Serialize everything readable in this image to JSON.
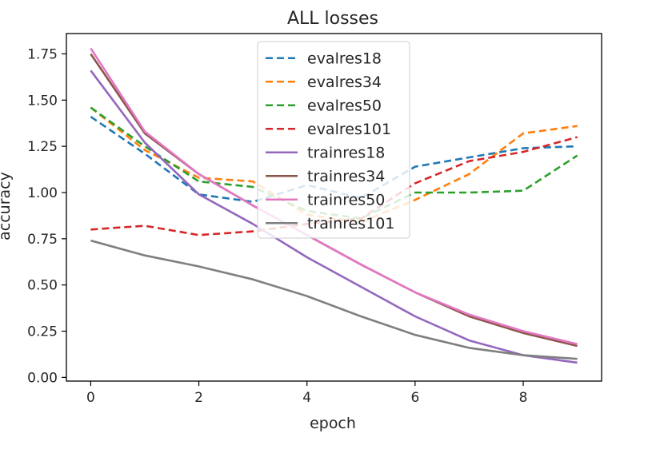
{
  "chart_data": {
    "type": "line",
    "title": "ALL  losses",
    "xlabel": "epoch",
    "ylabel": "accuracy",
    "xlim": [
      -0.45,
      9.45
    ],
    "ylim": [
      -0.02,
      1.86
    ],
    "x_ticks": [
      0,
      2,
      4,
      6,
      8
    ],
    "y_ticks": [
      0.0,
      0.25,
      0.5,
      0.75,
      1.0,
      1.25,
      1.5,
      1.75
    ],
    "x_tick_labels": [
      "0",
      "2",
      "4",
      "6",
      "8"
    ],
    "y_tick_labels": [
      "0.00",
      "0.25",
      "0.50",
      "0.75",
      "1.00",
      "1.25",
      "1.50",
      "1.75"
    ],
    "x": [
      0,
      1,
      2,
      3,
      4,
      5,
      6,
      7,
      8,
      9
    ],
    "grid": false,
    "legend_position": "top-center",
    "series": [
      {
        "name": "evalres18",
        "style": "dashed",
        "color": "#1f77b4",
        "values": [
          1.41,
          1.21,
          0.99,
          0.95,
          1.04,
          0.97,
          1.14,
          1.19,
          1.24,
          1.25
        ]
      },
      {
        "name": "evalres34",
        "style": "dashed",
        "color": "#ff7f0e",
        "values": [
          1.46,
          1.23,
          1.08,
          1.06,
          0.88,
          0.84,
          0.96,
          1.1,
          1.32,
          1.36
        ]
      },
      {
        "name": "evalres50",
        "style": "dashed",
        "color": "#2ca02c",
        "values": [
          1.46,
          1.25,
          1.06,
          1.03,
          0.9,
          0.86,
          1.0,
          1.0,
          1.01,
          1.2
        ]
      },
      {
        "name": "evalres101",
        "style": "dashed",
        "color": "#d62728",
        "values": [
          0.8,
          0.82,
          0.77,
          0.79,
          0.83,
          0.86,
          1.05,
          1.17,
          1.22,
          1.3
        ]
      },
      {
        "name": "trainres18",
        "style": "solid",
        "color": "#9467bd",
        "values": [
          1.66,
          1.27,
          0.99,
          0.83,
          0.65,
          0.49,
          0.33,
          0.2,
          0.12,
          0.08
        ]
      },
      {
        "name": "trainres34",
        "style": "solid",
        "color": "#8c564b",
        "values": [
          1.75,
          1.32,
          1.1,
          0.93,
          0.77,
          0.61,
          0.46,
          0.33,
          0.24,
          0.17
        ]
      },
      {
        "name": "trainres50",
        "style": "solid",
        "color": "#e377c2",
        "values": [
          1.78,
          1.33,
          1.1,
          0.93,
          0.77,
          0.61,
          0.46,
          0.34,
          0.25,
          0.18
        ]
      },
      {
        "name": "trainres101",
        "style": "solid",
        "color": "#7f7f7f",
        "values": [
          0.74,
          0.66,
          0.6,
          0.53,
          0.44,
          0.33,
          0.23,
          0.16,
          0.12,
          0.1
        ]
      }
    ]
  }
}
